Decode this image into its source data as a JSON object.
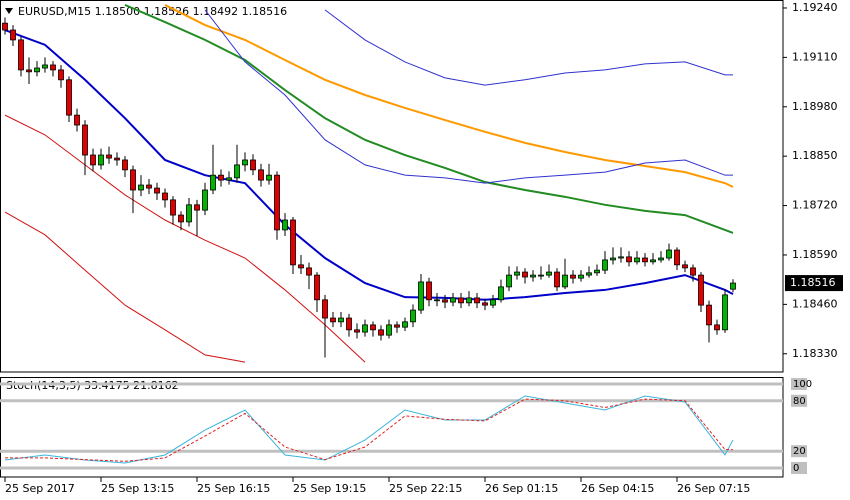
{
  "chart_data": [
    {
      "type": "candlestick",
      "title": "EURUSD,M15  1.18500 1.18526 1.18492 1.18516",
      "candles": [
        [
          1.192,
          1.19215,
          1.1917,
          1.19182
        ],
        [
          1.19182,
          1.19195,
          1.1914,
          1.19156
        ],
        [
          1.19156,
          1.19165,
          1.1906,
          1.19077
        ],
        [
          1.19077,
          1.1911,
          1.1904,
          1.19072
        ],
        [
          1.19072,
          1.191,
          1.1906,
          1.19082
        ],
        [
          1.19082,
          1.1911,
          1.1907,
          1.1909
        ],
        [
          1.1909,
          1.191,
          1.1906,
          1.19077
        ],
        [
          1.19077,
          1.1909,
          1.1903,
          1.19051
        ],
        [
          1.19051,
          1.1906,
          1.1894,
          1.18958
        ],
        [
          1.18958,
          1.18975,
          1.18915,
          1.18932
        ],
        [
          1.18932,
          1.18945,
          1.188,
          1.18853
        ],
        [
          1.18853,
          1.1887,
          1.1881,
          1.18827
        ],
        [
          1.18827,
          1.1887,
          1.18815,
          1.18853
        ],
        [
          1.18853,
          1.18875,
          1.1883,
          1.18845
        ],
        [
          1.18845,
          1.1886,
          1.18825,
          1.1884
        ],
        [
          1.1884,
          1.1885,
          1.18795,
          1.18814
        ],
        [
          1.18814,
          1.18825,
          1.187,
          1.18761
        ],
        [
          1.18761,
          1.188,
          1.18745,
          1.18774
        ],
        [
          1.18774,
          1.1879,
          1.1875,
          1.18766
        ],
        [
          1.18766,
          1.1878,
          1.18735,
          1.18753
        ],
        [
          1.18753,
          1.18765,
          1.18715,
          1.18735
        ],
        [
          1.18735,
          1.18745,
          1.1867,
          1.18695
        ],
        [
          1.18695,
          1.18705,
          1.18655,
          1.18677
        ],
        [
          1.18677,
          1.1874,
          1.18665,
          1.18722
        ],
        [
          1.18722,
          1.18735,
          1.1864,
          1.18708
        ],
        [
          1.18708,
          1.1878,
          1.18695,
          1.18761
        ],
        [
          1.18761,
          1.1888,
          1.1875,
          1.188
        ],
        [
          1.188,
          1.18815,
          1.1877,
          1.18787
        ],
        [
          1.18787,
          1.1881,
          1.18775,
          1.18793
        ],
        [
          1.18793,
          1.1888,
          1.1878,
          1.18827
        ],
        [
          1.18827,
          1.1886,
          1.1881,
          1.1884
        ],
        [
          1.1884,
          1.18855,
          1.188,
          1.18814
        ],
        [
          1.18814,
          1.1883,
          1.1877,
          1.18787
        ],
        [
          1.18787,
          1.1883,
          1.18775,
          1.188
        ],
        [
          1.188,
          1.1881,
          1.1863,
          1.18656
        ],
        [
          1.18656,
          1.187,
          1.1864,
          1.18682
        ],
        [
          1.18682,
          1.1869,
          1.1854,
          1.18564
        ],
        [
          1.18564,
          1.1859,
          1.1854,
          1.18556
        ],
        [
          1.18556,
          1.1857,
          1.185,
          1.18537
        ],
        [
          1.18537,
          1.18545,
          1.1844,
          1.18472
        ],
        [
          1.18472,
          1.18485,
          1.1832,
          1.18424
        ],
        [
          1.18424,
          1.1844,
          1.184,
          1.18414
        ],
        [
          1.18414,
          1.1844,
          1.184,
          1.18424
        ],
        [
          1.18424,
          1.18435,
          1.18375,
          1.18393
        ],
        [
          1.18393,
          1.1841,
          1.1837,
          1.18387
        ],
        [
          1.18387,
          1.1842,
          1.18375,
          1.18406
        ],
        [
          1.18406,
          1.18415,
          1.18375,
          1.18393
        ],
        [
          1.18393,
          1.18405,
          1.18365,
          1.18379
        ],
        [
          1.18379,
          1.1842,
          1.1837,
          1.18406
        ],
        [
          1.18406,
          1.18415,
          1.18385,
          1.184
        ],
        [
          1.184,
          1.18425,
          1.1839,
          1.18414
        ],
        [
          1.18414,
          1.1846,
          1.184,
          1.18445
        ],
        [
          1.18445,
          1.1854,
          1.18435,
          1.18519
        ],
        [
          1.18519,
          1.1853,
          1.18455,
          1.18472
        ],
        [
          1.18472,
          1.1849,
          1.18455,
          1.18472
        ],
        [
          1.18472,
          1.18485,
          1.1845,
          1.18466
        ],
        [
          1.18466,
          1.1849,
          1.18455,
          1.18477
        ],
        [
          1.18477,
          1.1849,
          1.1845,
          1.18464
        ],
        [
          1.18464,
          1.18495,
          1.18455,
          1.18477
        ],
        [
          1.18477,
          1.1849,
          1.1845,
          1.18464
        ],
        [
          1.18464,
          1.18475,
          1.18445,
          1.18458
        ],
        [
          1.18458,
          1.18485,
          1.1845,
          1.18472
        ],
        [
          1.18472,
          1.18525,
          1.18465,
          1.18506
        ],
        [
          1.18506,
          1.1856,
          1.18495,
          1.18537
        ],
        [
          1.18537,
          1.1856,
          1.18525,
          1.18545
        ],
        [
          1.18545,
          1.18555,
          1.18515,
          1.18532
        ],
        [
          1.18532,
          1.1855,
          1.1852,
          1.18537
        ],
        [
          1.18537,
          1.1856,
          1.18525,
          1.18537
        ],
        [
          1.18537,
          1.18565,
          1.1853,
          1.18545
        ],
        [
          1.18545,
          1.18555,
          1.18495,
          1.18506
        ],
        [
          1.18506,
          1.1858,
          1.185,
          1.18537
        ],
        [
          1.18537,
          1.1855,
          1.18515,
          1.18529
        ],
        [
          1.18529,
          1.1855,
          1.1852,
          1.18537
        ],
        [
          1.18537,
          1.1856,
          1.1853,
          1.18543
        ],
        [
          1.18543,
          1.18565,
          1.18535,
          1.1855
        ],
        [
          1.1855,
          1.186,
          1.1854,
          1.18577
        ],
        [
          1.18577,
          1.1861,
          1.18565,
          1.18582
        ],
        [
          1.18582,
          1.1861,
          1.1857,
          1.18585
        ],
        [
          1.18585,
          1.186,
          1.1856,
          1.18572
        ],
        [
          1.18572,
          1.186,
          1.18565,
          1.18582
        ],
        [
          1.18582,
          1.18595,
          1.1856,
          1.18572
        ],
        [
          1.18572,
          1.18595,
          1.18565,
          1.18577
        ],
        [
          1.18577,
          1.186,
          1.1857,
          1.18582
        ],
        [
          1.18582,
          1.1862,
          1.18575,
          1.18603
        ],
        [
          1.18603,
          1.1861,
          1.1855,
          1.18564
        ],
        [
          1.18564,
          1.18575,
          1.18545,
          1.18556
        ],
        [
          1.18556,
          1.18565,
          1.1852,
          1.18537
        ],
        [
          1.18537,
          1.18545,
          1.1844,
          1.18458
        ],
        [
          1.18458,
          1.1847,
          1.1836,
          1.18406
        ],
        [
          1.18406,
          1.1842,
          1.1838,
          1.18393
        ],
        [
          1.18393,
          1.185,
          1.18385,
          1.18485
        ],
        [
          1.185,
          1.18526,
          1.18492,
          1.18516
        ]
      ],
      "up_color": "#00b400",
      "down_color": "#e00000",
      "xlim": [
        -0.625,
        97.25
      ],
      "xticks": [
        {
          "value": 0,
          "label": "25 Sep 2017"
        },
        {
          "value": 12,
          "label": "25 Sep 13:15"
        },
        {
          "value": 24,
          "label": "25 Sep 16:15"
        },
        {
          "value": 36,
          "label": "25 Sep 19:15"
        },
        {
          "value": 48,
          "label": "25 Sep 22:15"
        },
        {
          "value": 60,
          "label": "26 Sep 01:15"
        },
        {
          "value": 72,
          "label": "26 Sep 04:15"
        },
        {
          "value": 84,
          "label": "26 Sep 07:15"
        }
      ],
      "ylim": [
        1.18282,
        1.19261
      ],
      "yticks": [
        {
          "value": 1.1924,
          "label": "1.19240"
        },
        {
          "value": 1.1911,
          "label": "1.19110"
        },
        {
          "value": 1.1898,
          "label": "1.18980"
        },
        {
          "value": 1.1885,
          "label": "1.18850"
        },
        {
          "value": 1.1872,
          "label": "1.18720"
        },
        {
          "value": 1.1859,
          "label": "1.18590"
        },
        {
          "value": 1.1846,
          "label": "1.18460"
        },
        {
          "value": 1.1833,
          "label": "1.18330"
        }
      ],
      "x": [
        0,
        5,
        10,
        15,
        20,
        25,
        30,
        35,
        40,
        45,
        50,
        55,
        60,
        65,
        70,
        75,
        80,
        85,
        90,
        91
      ],
      "series": [
        {
          "color": "#0000c8",
          "width": 2,
          "values": [
            1.19182,
            1.19143,
            1.19051,
            1.1895,
            1.1884,
            1.188,
            1.18779,
            1.18669,
            1.18582,
            1.18516,
            1.18479,
            1.18477,
            1.18472,
            1.18479,
            1.1849,
            1.18498,
            1.18516,
            1.18537,
            1.18498,
            1.18487
          ]
        },
        {
          "color": "#228b22",
          "width": 2,
          "values": [
            null,
            null,
            null,
            1.19248,
            1.19203,
            1.19156,
            1.19103,
            1.19024,
            1.1895,
            1.18893,
            1.18853,
            1.18819,
            1.18782,
            1.18761,
            1.18743,
            1.18722,
            1.18706,
            1.18695,
            1.18656,
            1.18648
          ]
        },
        {
          "color": "#ff9900",
          "width": 2,
          "values": [
            null,
            null,
            null,
            null,
            1.19248,
            1.19195,
            1.19156,
            1.19103,
            1.19051,
            1.19011,
            1.18977,
            1.18945,
            1.18914,
            1.18885,
            1.18861,
            1.1884,
            1.18824,
            1.18808,
            1.18779,
            1.18769
          ]
        },
        {
          "color": "#3030d0",
          "width": 1,
          "values": [
            null,
            null,
            null,
            null,
            null,
            1.19235,
            1.19098,
            1.19011,
            1.18893,
            1.18827,
            1.188,
            1.18793,
            1.18779,
            1.18793,
            1.188,
            1.18808,
            1.18832,
            1.1884,
            1.188,
            1.188
          ]
        },
        {
          "color": "#3030d0",
          "width": 1,
          "values": [
            null,
            null,
            null,
            null,
            null,
            null,
            null,
            null,
            1.19235,
            1.19156,
            1.19098,
            1.19056,
            1.19037,
            1.19051,
            1.19069,
            1.19077,
            1.19093,
            1.19098,
            1.19064,
            1.19064
          ]
        },
        {
          "color": "#d01010",
          "width": 1,
          "values": [
            1.18958,
            1.18906,
            1.18827,
            1.18748,
            1.18682,
            1.18629,
            1.18582,
            1.18498,
            1.18406,
            1.18308,
            null,
            null,
            null,
            null,
            null,
            null,
            null,
            null,
            null,
            null
          ]
        },
        {
          "color": "#d01010",
          "width": 1,
          "values": [
            1.18703,
            1.18643,
            1.1855,
            1.18458,
            1.18393,
            1.18327,
            1.18308,
            null,
            null,
            null,
            null,
            null,
            null,
            null,
            null,
            null,
            null,
            null,
            null,
            null
          ]
        }
      ]
    },
    {
      "type": "line",
      "title": "Stoch(14,3,5) 33.4175 21.8162",
      "xlim": [
        -0.625,
        97.25
      ],
      "ylim": [
        -10.7,
        108.3
      ],
      "yticks": [
        0,
        20,
        80,
        100
      ],
      "x": [
        0,
        5,
        10,
        15,
        20,
        25,
        30,
        35,
        40,
        45,
        50,
        55,
        60,
        65,
        70,
        75,
        80,
        85,
        90,
        91
      ],
      "series": [
        {
          "color": "#3cb4dc",
          "dashed": false,
          "values": [
            9.5,
            15.5,
            9.5,
            6,
            15.5,
            45.2,
            69,
            15.5,
            9.5,
            33.3,
            69,
            57.1,
            57.1,
            85.7,
            77.4,
            69,
            85.7,
            78.6,
            15.5,
            33.4175
          ]
        },
        {
          "color": "#e02020",
          "dashed": true,
          "values": [
            12,
            12,
            10,
            8,
            12,
            38,
            65,
            25,
            10,
            25,
            62,
            58,
            56,
            82,
            80,
            72,
            82,
            80,
            22,
            21.8162
          ]
        }
      ]
    }
  ]
}
